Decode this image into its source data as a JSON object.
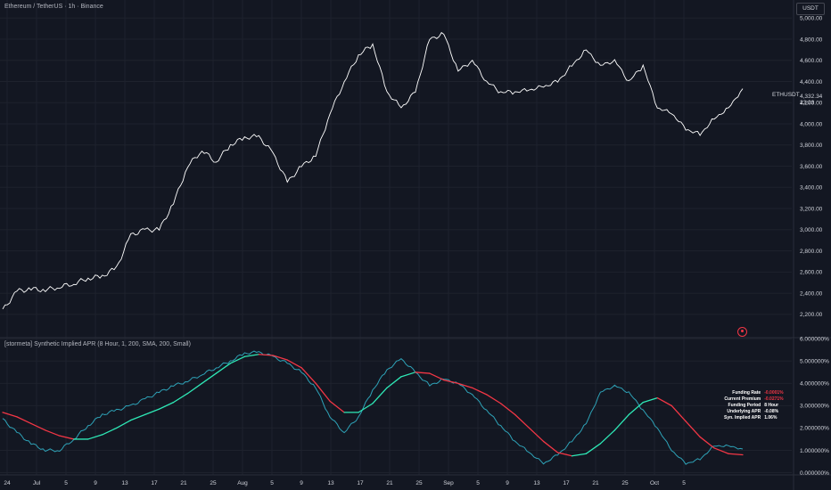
{
  "header": {
    "symbol_title": "Ethereum / TetherUS · 1h · Binance",
    "indicator_title": "[stormeta] Synthetic Implied APR (8 Hour, 1, 200, SMA, 200, Small)"
  },
  "currency_button": "USDT",
  "price_tag": {
    "symbol": "ETHUSDT",
    "price": "4,332.34",
    "countdown": "23:23"
  },
  "info_table": [
    {
      "key": "Funding Rate",
      "value": "-0.0001%",
      "negative": true
    },
    {
      "key": "Current Premium",
      "value": "-0.0271%",
      "negative": true
    },
    {
      "key": "Funding Period",
      "value": "8 Hour",
      "negative": false
    },
    {
      "key": "Underlying APR",
      "value": "-0.08%",
      "negative": false
    },
    {
      "key": "Syn. Implied APR",
      "value": "1.06%",
      "negative": false
    }
  ],
  "colors": {
    "background": "#131722",
    "price_line": "#ffffff",
    "apr_line": "#2ea3b8",
    "ma_up": "#2ee8b6",
    "ma_down": "#f23645",
    "grid": "#1e222d",
    "text": "#d1d4dc"
  },
  "chart_data": [
    {
      "type": "line",
      "title": "Ethereum / TetherUS · 1h · Binance",
      "x_ticks": [
        "24",
        "Jul",
        "5",
        "9",
        "13",
        "17",
        "21",
        "25",
        "Aug",
        "5",
        "9",
        "13",
        "17",
        "21",
        "25",
        "Sep",
        "5",
        "9",
        "13",
        "17",
        "21",
        "25",
        "Oct",
        "5"
      ],
      "y_ticks": [
        "2,200.00",
        "2,400.00",
        "2,600.00",
        "2,800.00",
        "3,000.00",
        "3,200.00",
        "3,400.00",
        "3,600.00",
        "3,800.00",
        "4,000.00",
        "4,200.00",
        "4,400.00",
        "4,600.00",
        "4,800.00",
        "5,000.00"
      ],
      "ylim": [
        1980,
        5170
      ],
      "series": [
        {
          "name": "ETHUSDT",
          "x": [
            0,
            2,
            4,
            6,
            8,
            10,
            12,
            14,
            16,
            18,
            20,
            22,
            24,
            26,
            28,
            30,
            32,
            34,
            36,
            38,
            40,
            42,
            44,
            46,
            48,
            50,
            52,
            54,
            56,
            58,
            60,
            62,
            64,
            66,
            68,
            70,
            72,
            74,
            76,
            78,
            80,
            82,
            84,
            86,
            88,
            90,
            92,
            94,
            96,
            98,
            100,
            102,
            104
          ],
          "values": [
            2240,
            2420,
            2440,
            2430,
            2460,
            2490,
            2540,
            2560,
            2640,
            2950,
            3000,
            3000,
            3250,
            3600,
            3750,
            3640,
            3800,
            3870,
            3880,
            3720,
            3450,
            3600,
            3700,
            4100,
            4400,
            4650,
            4750,
            4300,
            4150,
            4300,
            4800,
            4850,
            4500,
            4600,
            4400,
            4300,
            4300,
            4320,
            4350,
            4400,
            4550,
            4700,
            4550,
            4600,
            4400,
            4550,
            4150,
            4100,
            3950,
            3900,
            4050,
            4150,
            4332
          ]
        }
      ]
    },
    {
      "type": "line",
      "title": "[stormeta] Synthetic Implied APR (8 Hour, 1, 200, SMA, 200, Small)",
      "y_ticks": [
        "0.000000%",
        "1.000000%",
        "2.000000%",
        "3.000000%",
        "4.000000%",
        "5.000000%",
        "6.000000%"
      ],
      "ylim": [
        -0.1,
        6.05
      ],
      "series": [
        {
          "name": "Synthetic Implied APR",
          "x": [
            0,
            2,
            4,
            6,
            8,
            10,
            12,
            14,
            16,
            18,
            20,
            22,
            24,
            26,
            28,
            30,
            32,
            34,
            36,
            38,
            40,
            42,
            44,
            46,
            48,
            50,
            52,
            54,
            56,
            58,
            60,
            62,
            64,
            66,
            68,
            70,
            72,
            74,
            76,
            78,
            80,
            82,
            84,
            86,
            88,
            90,
            92,
            94,
            96,
            98,
            100,
            102,
            104
          ],
          "values": [
            2.4,
            1.8,
            1.3,
            1.0,
            1.0,
            1.5,
            2.1,
            2.6,
            2.8,
            3.0,
            3.3,
            3.6,
            3.9,
            4.1,
            4.4,
            4.7,
            5.0,
            5.35,
            5.4,
            5.2,
            4.9,
            4.5,
            3.8,
            2.5,
            1.8,
            2.5,
            3.7,
            4.6,
            5.1,
            4.5,
            3.9,
            4.2,
            4.0,
            3.5,
            2.8,
            2.1,
            1.4,
            0.9,
            0.4,
            0.8,
            1.4,
            2.2,
            3.6,
            3.9,
            3.6,
            2.8,
            2.0,
            1.0,
            0.4,
            0.6,
            1.2,
            1.2,
            1.06
          ]
        },
        {
          "name": "SMA 200",
          "x": [
            0,
            2,
            4,
            6,
            8,
            10,
            12,
            14,
            16,
            18,
            20,
            22,
            24,
            26,
            28,
            30,
            32,
            34,
            36,
            38,
            40,
            42,
            44,
            46,
            48,
            50,
            52,
            54,
            56,
            58,
            60,
            62,
            64,
            66,
            68,
            70,
            72,
            74,
            76,
            78,
            80,
            82,
            84,
            86,
            88,
            90,
            92,
            94,
            96,
            98,
            100,
            102,
            104
          ],
          "values": [
            2.7,
            2.5,
            2.2,
            1.9,
            1.65,
            1.5,
            1.5,
            1.7,
            2.0,
            2.35,
            2.6,
            2.85,
            3.15,
            3.55,
            4.0,
            4.45,
            4.9,
            5.2,
            5.3,
            5.25,
            5.05,
            4.7,
            4.0,
            3.2,
            2.7,
            2.7,
            3.1,
            3.8,
            4.3,
            4.5,
            4.45,
            4.15,
            4.0,
            3.8,
            3.5,
            3.1,
            2.6,
            2.0,
            1.4,
            0.9,
            0.75,
            0.85,
            1.3,
            1.9,
            2.6,
            3.15,
            3.35,
            3.0,
            2.3,
            1.6,
            1.1,
            0.85,
            0.8
          ]
        }
      ]
    }
  ]
}
